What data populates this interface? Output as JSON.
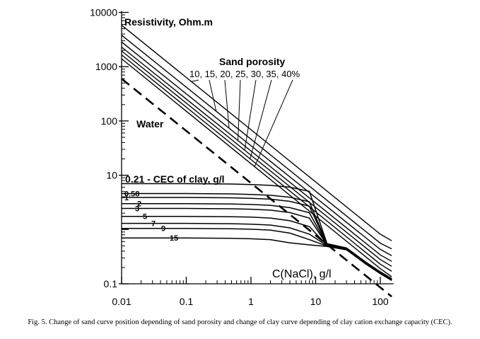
{
  "chart_data": {
    "type": "line",
    "title": "",
    "ylabel": "Resistivity, Ohm.m",
    "xlabel": "C(NaCl), g/l",
    "xscale": "log",
    "yscale": "log",
    "xlim": [
      0.01,
      160
    ],
    "ylim": [
      0.1,
      10000
    ],
    "x_ticks": [
      {
        "value": 0.01,
        "label": "0.01"
      },
      {
        "value": 0.1,
        "label": "0.1"
      },
      {
        "value": 1,
        "label": "1"
      },
      {
        "value": 10,
        "label": "10"
      },
      {
        "value": 100,
        "label": "100"
      }
    ],
    "y_ticks": [
      {
        "value": 0.1,
        "label": "0.1"
      },
      {
        "value": 10,
        "label": "10"
      },
      {
        "value": 100,
        "label": "100"
      },
      {
        "value": 1000,
        "label": "1000"
      },
      {
        "value": 10000,
        "label": "10000"
      }
    ],
    "water": {
      "name": "Water",
      "label": "Water",
      "style": "dashed",
      "x": [
        0.01,
        150
      ],
      "y": [
        600,
        0.058
      ]
    },
    "sand_header": "Sand porosity",
    "sand_porosity_label": "10, 15, 20, 25, 30, 35, 40%",
    "sand_series": [
      {
        "name": "10%",
        "x": [
          0.01,
          100,
          150
        ],
        "y": [
          5800,
          0.82,
          0.62
        ]
      },
      {
        "name": "15%",
        "x": [
          0.01,
          100,
          150
        ],
        "y": [
          3800,
          0.56,
          0.44
        ]
      },
      {
        "name": "20%",
        "x": [
          0.01,
          100,
          150
        ],
        "y": [
          2850,
          0.43,
          0.33
        ]
      },
      {
        "name": "25%",
        "x": [
          0.01,
          100,
          150
        ],
        "y": [
          2300,
          0.34,
          0.26
        ]
      },
      {
        "name": "30%",
        "x": [
          0.01,
          100,
          150
        ],
        "y": [
          1950,
          0.28,
          0.21
        ]
      },
      {
        "name": "35%",
        "x": [
          0.01,
          100,
          150
        ],
        "y": [
          1650,
          0.23,
          0.17
        ]
      },
      {
        "name": "40%",
        "x": [
          0.01,
          100,
          150
        ],
        "y": [
          1400,
          0.19,
          0.135
        ]
      }
    ],
    "clay_header": "0.21 - CEC of clay, g/l",
    "clay_series": [
      {
        "name": "0.21",
        "label": "",
        "plateau": 7.0
      },
      {
        "name": "0.58",
        "label": "0.58",
        "plateau": 4.6
      },
      {
        "name": "1",
        "label": "1",
        "plateau": 3.9
      },
      {
        "name": "2",
        "label": "2",
        "plateau": 3.0
      },
      {
        "name": "3",
        "label": "3",
        "plateau": 2.45
      },
      {
        "name": "5",
        "label": "5",
        "plateau": 1.75
      },
      {
        "name": "7",
        "label": "7",
        "plateau": 1.3
      },
      {
        "name": "9",
        "label": "9",
        "plateau": 1.05
      },
      {
        "name": "15",
        "label": "15",
        "plateau": 0.7
      }
    ],
    "clay_x": [
      0.01,
      0.1,
      0.5,
      1,
      2,
      4,
      8,
      15,
      30,
      60,
      100,
      150
    ],
    "clay_tail_y": [
      0.44,
      0.24,
      0.16,
      0.12
    ]
  },
  "caption": "Fig. 5. Change of sand curve position depending of sand porosity and change of clay curve depending of clay cation exchange capacity (CEC)."
}
